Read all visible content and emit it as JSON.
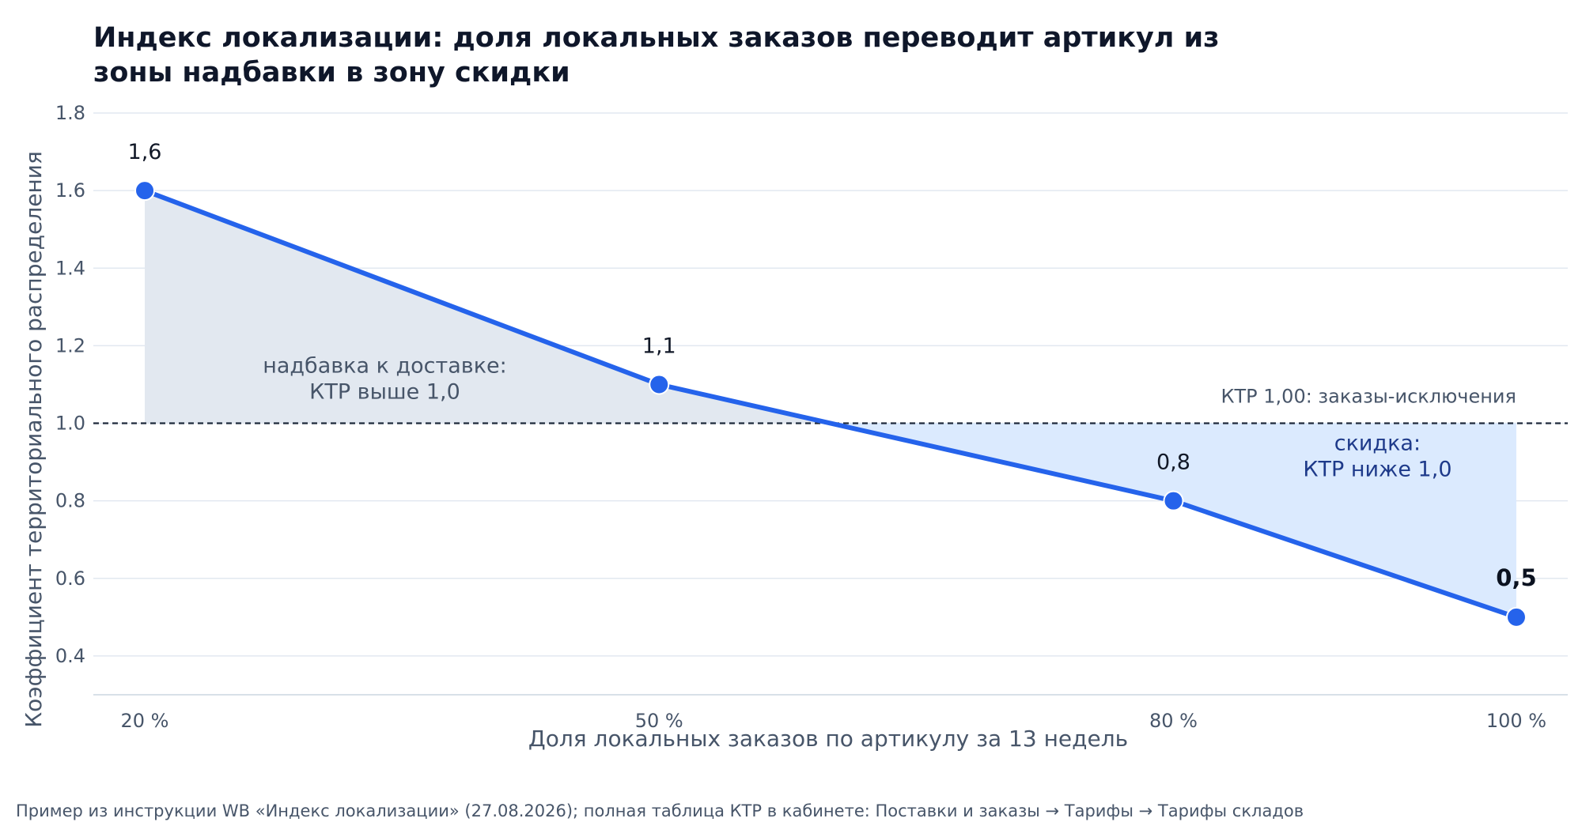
{
  "title_line1": "Индекс локализации: доля локальных заказов переводит артикул из",
  "title_line2": "зоны надбавки в зону скидки",
  "source_note": "Пример из инструкции WB «Индекс локализации» (27.08.2026); полная таблица КТР в кабинете: Поставки и заказы → Тарифы → Тарифы складов",
  "colors": {
    "line": "#2563eb",
    "surcharge_fill": "#e2e8f0",
    "discount_fill": "#dbeafe",
    "grid": "#e2e8f0",
    "reference": "#1e293b",
    "surcharge_text": "#475569",
    "discount_text": "#1e3a8a"
  },
  "chart_data": {
    "type": "line",
    "xlabel": "Доля локальных заказов по артикулу за 13 недель",
    "ylabel": "Коэффициент территориального распределения",
    "x": [
      20,
      50,
      80,
      100
    ],
    "x_tick_labels": [
      "20 %",
      "50 %",
      "80 %",
      "100 %"
    ],
    "y": [
      1.6,
      1.1,
      0.8,
      0.5
    ],
    "point_labels": [
      "1,6",
      "1,1",
      "0,8",
      "0,5"
    ],
    "highlight_last_label": true,
    "xlim": [
      17,
      103
    ],
    "ylim": [
      0.3,
      1.8
    ],
    "y_ticks": [
      0.4,
      0.6,
      0.8,
      1.0,
      1.2,
      1.4,
      1.6,
      1.8
    ],
    "y_tick_labels": [
      "0.4",
      "0.6",
      "0.8",
      "1.0",
      "1.2",
      "1.4",
      "1.6",
      "1.8"
    ],
    "grid": true,
    "reference_line": {
      "y": 1.0,
      "label": "КТР 1,00: заказы-исключения"
    },
    "zones": [
      {
        "name": "surcharge",
        "line1": "надбавка к доставке:",
        "line2": "КТР выше 1,0",
        "anchor_x": 34,
        "anchor_y": 1.11
      },
      {
        "name": "discount",
        "line1": "скидка:",
        "line2": "КТР ниже 1,0",
        "anchor_x": 91.9,
        "anchor_y": 0.91
      }
    ]
  }
}
